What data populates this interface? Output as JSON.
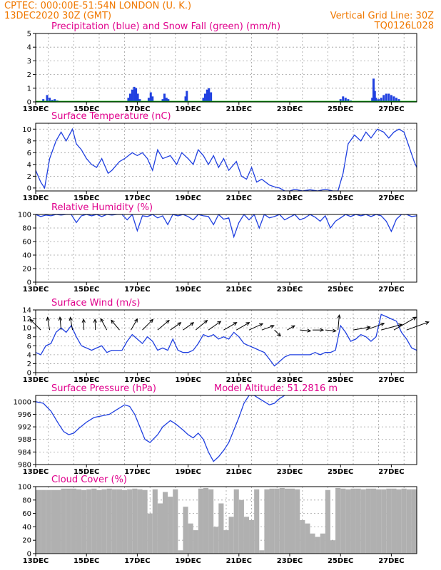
{
  "header": {
    "line1": "CPTEC:   000:00E-51:54N   LONDON (U. K.)",
    "line2": "13DEC2020 30Z (GMT)",
    "grid_note": "Vertical Grid Line: 30Z",
    "model_id": "TQ0126L028"
  },
  "colors": {
    "header": "#f07800",
    "title": "#e0008c",
    "line": "#2040e0",
    "snow": "#00b000",
    "cloud": "#b0b0b0",
    "grid": "#a0a0a0"
  },
  "x_axis": {
    "days": [
      "13DEC",
      "15DEC",
      "17DEC",
      "19DEC",
      "21DEC",
      "23DEC",
      "25DEC",
      "27DEC"
    ],
    "day_positions": [
      13,
      15,
      17,
      19,
      21,
      23,
      25,
      27
    ],
    "x_range": [
      13,
      28.0
    ],
    "grid_days": [
      13.5,
      14.5,
      15.5,
      16.5,
      17.5,
      18.5,
      19.5,
      20.5,
      21.5,
      22.5,
      23.5,
      24.5,
      25.5,
      26.5,
      27.5
    ]
  },
  "chart_data": [
    {
      "id": "precip",
      "type": "bar",
      "title": "Precipitation (blue) and Snow Fall (green) (mm/h)",
      "ylim": [
        0,
        5
      ],
      "yticks": [
        0,
        1,
        2,
        3,
        4,
        5
      ],
      "grid": true,
      "series": [
        {
          "name": "Precipitation",
          "color": "#2040e0",
          "x": [
            13.3,
            13.45,
            13.55,
            13.65,
            13.75,
            13.85,
            16.65,
            16.72,
            16.8,
            16.88,
            16.95,
            17.02,
            17.1,
            17.45,
            17.53,
            17.6,
            18.0,
            18.07,
            18.15,
            18.22,
            18.9,
            18.95,
            19.6,
            19.67,
            19.75,
            19.82,
            19.9,
            25.0,
            25.1,
            25.2,
            25.3,
            25.4,
            26.25,
            26.3,
            26.35,
            26.4,
            26.45,
            26.5,
            26.6,
            26.7,
            26.8,
            26.9,
            27.0,
            27.1,
            27.2,
            27.3
          ],
          "values": [
            0.2,
            0.5,
            0.3,
            0.15,
            0.2,
            0.1,
            0.3,
            0.6,
            0.9,
            1.1,
            1.0,
            0.6,
            0.2,
            0.3,
            0.7,
            0.4,
            0.2,
            0.6,
            0.3,
            0.2,
            0.4,
            0.8,
            0.3,
            0.6,
            0.9,
            1.0,
            0.7,
            0.2,
            0.4,
            0.3,
            0.2,
            0.1,
            0.3,
            1.7,
            0.8,
            0.3,
            0.1,
            0.2,
            0.3,
            0.5,
            0.6,
            0.6,
            0.5,
            0.4,
            0.3,
            0.2
          ]
        },
        {
          "name": "Snow Fall",
          "color": "#00b000",
          "x": [
            13.0,
            28.0
          ],
          "values": [
            0.02,
            0.02
          ]
        }
      ]
    },
    {
      "id": "temp",
      "type": "line",
      "title": "Surface Temperature (nC)",
      "ylim": [
        -0.5,
        11
      ],
      "yticks": [
        0,
        2,
        4,
        6,
        8,
        10
      ],
      "grid": true,
      "series": [
        {
          "name": "Surface Temperature",
          "color": "#2040e0",
          "x": [
            13.0,
            13.2,
            13.35,
            13.55,
            13.8,
            14.0,
            14.2,
            14.45,
            14.6,
            14.8,
            15.0,
            15.2,
            15.4,
            15.6,
            15.85,
            16.0,
            16.3,
            16.5,
            16.8,
            17.0,
            17.2,
            17.4,
            17.6,
            17.8,
            18.0,
            18.3,
            18.55,
            18.75,
            19.0,
            19.2,
            19.4,
            19.6,
            19.8,
            20.0,
            20.2,
            20.4,
            20.6,
            20.9,
            21.1,
            21.3,
            21.5,
            21.7,
            21.9,
            22.2,
            22.4,
            22.6,
            22.8,
            23.0,
            23.2,
            23.5,
            23.8,
            24.1,
            24.4,
            24.7,
            24.9,
            25.1,
            25.3,
            25.55,
            25.8,
            26.0,
            26.2,
            26.45,
            26.7,
            26.9,
            27.1,
            27.3,
            27.5,
            27.7,
            27.9,
            28.0
          ],
          "values": [
            3.0,
            1.0,
            0.0,
            5.0,
            8.0,
            9.5,
            8.0,
            10.0,
            7.5,
            6.5,
            5.0,
            4.0,
            3.5,
            5.0,
            2.5,
            3.0,
            4.5,
            5.0,
            6.0,
            5.5,
            6.0,
            5.0,
            3.0,
            6.5,
            5.0,
            5.5,
            4.0,
            6.0,
            5.0,
            4.0,
            6.5,
            5.5,
            4.0,
            5.5,
            3.5,
            5.0,
            3.0,
            4.5,
            2.0,
            1.5,
            3.5,
            1.0,
            1.5,
            0.5,
            0.2,
            0.0,
            -0.5,
            -0.5,
            -0.2,
            -0.5,
            -0.3,
            -0.5,
            -0.2,
            -0.5,
            -0.5,
            2.5,
            7.5,
            9.0,
            8.0,
            9.5,
            8.5,
            10.0,
            9.5,
            8.5,
            9.5,
            10.0,
            9.5,
            7.0,
            4.5,
            3.5
          ]
        }
      ]
    },
    {
      "id": "humidity",
      "type": "line",
      "title": "Relative Humidity (%)",
      "ylim": [
        0,
        100
      ],
      "yticks": [
        0,
        20,
        40,
        60,
        80,
        100
      ],
      "grid": true,
      "series": [
        {
          "name": "Relative Humidity",
          "color": "#2040e0",
          "x": [
            13.0,
            13.2,
            13.4,
            13.6,
            13.8,
            14.0,
            14.2,
            14.4,
            14.6,
            14.8,
            15.0,
            15.2,
            15.4,
            15.6,
            15.8,
            16.0,
            16.2,
            16.4,
            16.6,
            16.8,
            17.0,
            17.2,
            17.4,
            17.6,
            17.8,
            18.0,
            18.2,
            18.4,
            18.6,
            18.8,
            19.0,
            19.2,
            19.4,
            19.6,
            19.8,
            20.0,
            20.2,
            20.4,
            20.6,
            20.8,
            21.0,
            21.2,
            21.4,
            21.6,
            21.8,
            22.0,
            22.2,
            22.4,
            22.6,
            22.8,
            23.0,
            23.2,
            23.4,
            23.6,
            23.8,
            24.0,
            24.2,
            24.4,
            24.6,
            24.8,
            25.0,
            25.2,
            25.4,
            25.6,
            25.8,
            26.0,
            26.2,
            26.4,
            26.6,
            26.8,
            27.0,
            27.2,
            27.4,
            27.6,
            27.8,
            28.0
          ],
          "values": [
            100,
            97,
            99,
            98,
            100,
            99,
            100,
            100,
            88,
            98,
            100,
            98,
            100,
            97,
            100,
            99,
            100,
            100,
            92,
            100,
            76,
            98,
            97,
            100,
            95,
            98,
            85,
            100,
            98,
            100,
            97,
            92,
            100,
            98,
            97,
            85,
            100,
            93,
            95,
            67,
            88,
            100,
            92,
            100,
            80,
            100,
            95,
            97,
            100,
            92,
            96,
            100,
            92,
            95,
            100,
            96,
            90,
            98,
            80,
            90,
            95,
            100,
            97,
            100,
            98,
            100,
            97,
            100,
            98,
            90,
            75,
            93,
            100,
            100,
            97,
            98
          ]
        }
      ]
    },
    {
      "id": "wind",
      "type": "line",
      "title": "Surface Wind (m/s)",
      "ylim": [
        0,
        14
      ],
      "yticks": [
        0,
        2,
        4,
        6,
        8,
        10,
        12,
        14
      ],
      "grid": true,
      "series": [
        {
          "name": "Wind Speed",
          "color": "#2040e0",
          "x": [
            13.0,
            13.2,
            13.4,
            13.6,
            13.8,
            14.0,
            14.2,
            14.4,
            14.6,
            14.8,
            15.0,
            15.2,
            15.4,
            15.6,
            15.8,
            16.0,
            16.2,
            16.4,
            16.6,
            16.8,
            17.0,
            17.2,
            17.4,
            17.6,
            17.8,
            18.0,
            18.2,
            18.4,
            18.6,
            18.8,
            19.0,
            19.2,
            19.4,
            19.6,
            19.8,
            20.0,
            20.2,
            20.4,
            20.6,
            20.8,
            21.0,
            21.2,
            21.4,
            21.6,
            21.8,
            22.0,
            22.2,
            22.4,
            22.6,
            22.8,
            23.0,
            23.2,
            23.4,
            23.6,
            23.8,
            24.0,
            24.2,
            24.4,
            24.6,
            24.8,
            25.0,
            25.2,
            25.4,
            25.6,
            25.8,
            26.0,
            26.2,
            26.4,
            26.6,
            26.8,
            27.0,
            27.2,
            27.4,
            27.6,
            27.8,
            28.0
          ],
          "values": [
            4.5,
            4.0,
            6.0,
            6.5,
            9.0,
            10.0,
            9.0,
            10.5,
            8.0,
            6.0,
            5.5,
            5.0,
            5.5,
            6.0,
            4.5,
            5.0,
            5.0,
            5.0,
            7.0,
            8.5,
            7.5,
            6.5,
            8.0,
            7.0,
            5.0,
            5.5,
            5.0,
            7.5,
            5.0,
            4.5,
            4.5,
            5.0,
            6.5,
            8.5,
            8.0,
            8.5,
            7.5,
            8.0,
            7.5,
            9.0,
            8.0,
            6.5,
            6.0,
            5.5,
            5.0,
            4.5,
            3.0,
            1.5,
            2.5,
            3.5,
            4.0,
            4.0,
            4.0,
            4.0,
            4.0,
            4.5,
            4.0,
            4.5,
            4.5,
            5.0,
            10.5,
            9.0,
            7.0,
            7.5,
            8.5,
            8.0,
            7.0,
            8.0,
            13.0,
            12.5,
            12.0,
            11.5,
            9.0,
            7.5,
            5.5,
            5.0
          ]
        }
      ],
      "vectors": [
        {
          "x": 13.2,
          "dir": 135,
          "len": 7
        },
        {
          "x": 13.55,
          "dir": 100,
          "len": 6
        },
        {
          "x": 14.0,
          "dir": 95,
          "len": 6
        },
        {
          "x": 14.45,
          "dir": 100,
          "len": 6
        },
        {
          "x": 14.9,
          "dir": 92,
          "len": 5
        },
        {
          "x": 15.35,
          "dir": 92,
          "len": 5
        },
        {
          "x": 15.8,
          "dir": 118,
          "len": 6
        },
        {
          "x": 16.3,
          "dir": 130,
          "len": 6
        },
        {
          "x": 16.75,
          "dir": 60,
          "len": 6
        },
        {
          "x": 17.2,
          "dir": 45,
          "len": 7
        },
        {
          "x": 17.8,
          "dir": 40,
          "len": 7
        },
        {
          "x": 18.3,
          "dir": 35,
          "len": 6
        },
        {
          "x": 18.8,
          "dir": 35,
          "len": 6
        },
        {
          "x": 19.3,
          "dir": 40,
          "len": 7
        },
        {
          "x": 19.8,
          "dir": 35,
          "len": 7
        },
        {
          "x": 20.4,
          "dir": 30,
          "len": 7
        },
        {
          "x": 20.9,
          "dir": 30,
          "len": 7
        },
        {
          "x": 21.4,
          "dir": 25,
          "len": 7
        },
        {
          "x": 21.9,
          "dir": 20,
          "len": 6
        },
        {
          "x": 22.4,
          "dir": 315,
          "len": 4
        },
        {
          "x": 22.9,
          "dir": 30,
          "len": 4
        },
        {
          "x": 23.4,
          "dir": 355,
          "len": 5
        },
        {
          "x": 23.9,
          "dir": 0,
          "len": 5
        },
        {
          "x": 24.4,
          "dir": 355,
          "len": 5
        },
        {
          "x": 24.9,
          "dir": 85,
          "len": 7
        },
        {
          "x": 25.5,
          "dir": 10,
          "len": 8
        },
        {
          "x": 26.0,
          "dir": 20,
          "len": 9
        },
        {
          "x": 26.6,
          "dir": 15,
          "len": 10
        },
        {
          "x": 27.1,
          "dir": 30,
          "len": 12
        },
        {
          "x": 27.6,
          "dir": 20,
          "len": 11
        }
      ]
    },
    {
      "id": "pressure",
      "type": "line",
      "title": "Surface Pressure (hPa)",
      "annotation": "Model Altitude: 51.2816 m",
      "ylim": [
        980,
        1002
      ],
      "yticks": [
        980,
        984,
        988,
        992,
        996,
        1000
      ],
      "grid": true,
      "series": [
        {
          "name": "Surface Pressure",
          "color": "#2040e0",
          "x": [
            13.0,
            13.3,
            13.6,
            13.9,
            14.1,
            14.3,
            14.5,
            14.7,
            15.0,
            15.3,
            15.6,
            15.9,
            16.2,
            16.5,
            16.7,
            16.9,
            17.1,
            17.3,
            17.5,
            17.8,
            18.0,
            18.3,
            18.5,
            18.8,
            19.0,
            19.2,
            19.4,
            19.6,
            19.8,
            20.0,
            20.2,
            20.4,
            20.6,
            20.8,
            21.0,
            21.2,
            21.4,
            21.6,
            21.8,
            22.0,
            22.2,
            22.4,
            22.6,
            22.8
          ],
          "values": [
            1000,
            999.5,
            997,
            993,
            990.5,
            989.5,
            990,
            991.5,
            993.5,
            995,
            995.5,
            996,
            997.5,
            999,
            998.5,
            996,
            992,
            988,
            987,
            989.5,
            992,
            994,
            993,
            991,
            989.5,
            988.5,
            990,
            988,
            984,
            981,
            982.5,
            984.5,
            987,
            991,
            995,
            999.5,
            1002,
            1002,
            1001,
            1000,
            999,
            999.5,
            1001,
            1002
          ]
        }
      ]
    },
    {
      "id": "cloud",
      "type": "area",
      "title": "Cloud Cover (%)",
      "ylim": [
        0,
        100
      ],
      "yticks": [
        0,
        20,
        40,
        60,
        80,
        100
      ],
      "grid": true,
      "series": [
        {
          "name": "Cloud Cover",
          "color": "#b0b0b0",
          "x": [
            13.0,
            13.2,
            13.4,
            13.6,
            13.8,
            14.0,
            14.2,
            14.4,
            14.6,
            14.8,
            15.0,
            15.2,
            15.4,
            15.6,
            15.8,
            16.0,
            16.2,
            16.4,
            16.6,
            16.8,
            17.0,
            17.2,
            17.4,
            17.6,
            17.8,
            18.0,
            18.2,
            18.4,
            18.6,
            18.8,
            19.0,
            19.2,
            19.4,
            19.6,
            19.8,
            20.0,
            20.2,
            20.4,
            20.6,
            20.8,
            21.0,
            21.2,
            21.4,
            21.6,
            21.8,
            22.0,
            22.2,
            22.4,
            22.6,
            22.8,
            23.0,
            23.2,
            23.4,
            23.6,
            23.8,
            24.0,
            24.2,
            24.4,
            24.6,
            24.8,
            25.0,
            25.2,
            25.4,
            25.6,
            25.8,
            26.0,
            26.2,
            26.4,
            26.6,
            26.8,
            27.0,
            27.2,
            27.4,
            27.6,
            27.8,
            28.0
          ],
          "values": [
            95,
            95,
            95,
            95,
            95,
            97,
            97,
            97,
            96,
            95,
            96,
            97,
            95,
            96,
            97,
            96,
            96,
            95,
            96,
            97,
            96,
            95,
            60,
            96,
            75,
            92,
            85,
            96,
            5,
            70,
            45,
            35,
            97,
            98,
            96,
            40,
            75,
            35,
            55,
            96,
            80,
            55,
            50,
            96,
            5,
            96,
            97,
            97,
            98,
            97,
            97,
            96,
            50,
            45,
            30,
            25,
            30,
            95,
            20,
            98,
            97,
            96,
            97,
            97,
            96,
            97,
            97,
            96,
            96,
            97,
            97,
            96,
            97,
            96,
            96,
            97
          ]
        }
      ]
    }
  ]
}
